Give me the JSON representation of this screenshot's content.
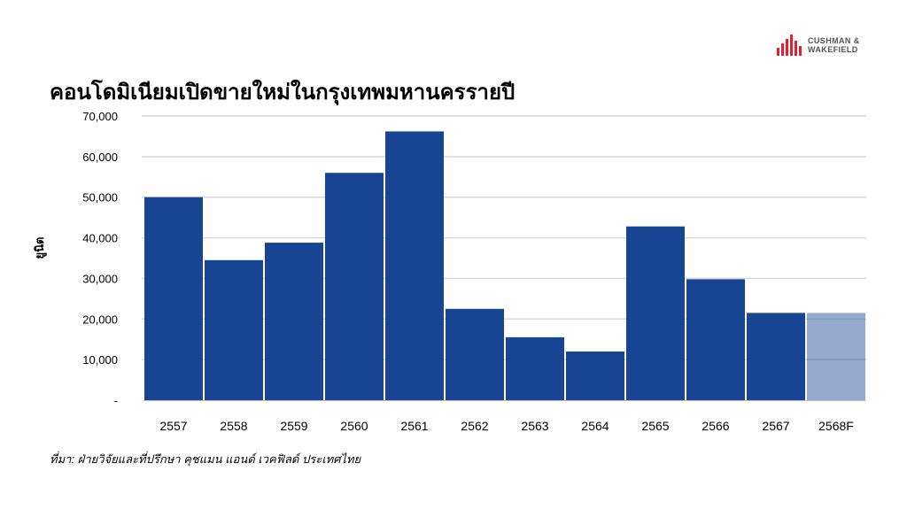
{
  "brand": {
    "line1": "CUSHMAN &",
    "line2": "WAKEFIELD",
    "color": "#E4202E"
  },
  "chart_data": {
    "type": "bar",
    "title": "คอนโดมิเนียมเปิดขายใหม่ในกรุงเทพมหานครรายปี",
    "xlabel": "",
    "ylabel": "ยูนิต",
    "categories": [
      "2557",
      "2558",
      "2559",
      "2560",
      "2561",
      "2562",
      "2563",
      "2564",
      "2565",
      "2566",
      "2567",
      "2568F"
    ],
    "values": [
      50000,
      34500,
      38800,
      56000,
      66200,
      22500,
      15500,
      12000,
      42800,
      29800,
      21500,
      21500
    ],
    "forecast": [
      false,
      false,
      false,
      false,
      false,
      false,
      false,
      false,
      false,
      false,
      false,
      true
    ],
    "ylim": [
      0,
      70000
    ],
    "yticks": [
      0,
      10000,
      20000,
      30000,
      40000,
      50000,
      60000,
      70000
    ],
    "ytick_labels": [
      "-",
      "10,000",
      "20,000",
      "30,000",
      "40,000",
      "50,000",
      "60,000",
      "70,000"
    ],
    "grid": true,
    "colors": {
      "bar": "#174593",
      "forecast": "#94A9CB",
      "grid": "#D9D9D9"
    }
  },
  "source": "ที่มา: ฝ่ายวิจัยและที่ปรึกษา คุชแมน แอนด์ เวคฟิลด์ ประเทศไทย"
}
